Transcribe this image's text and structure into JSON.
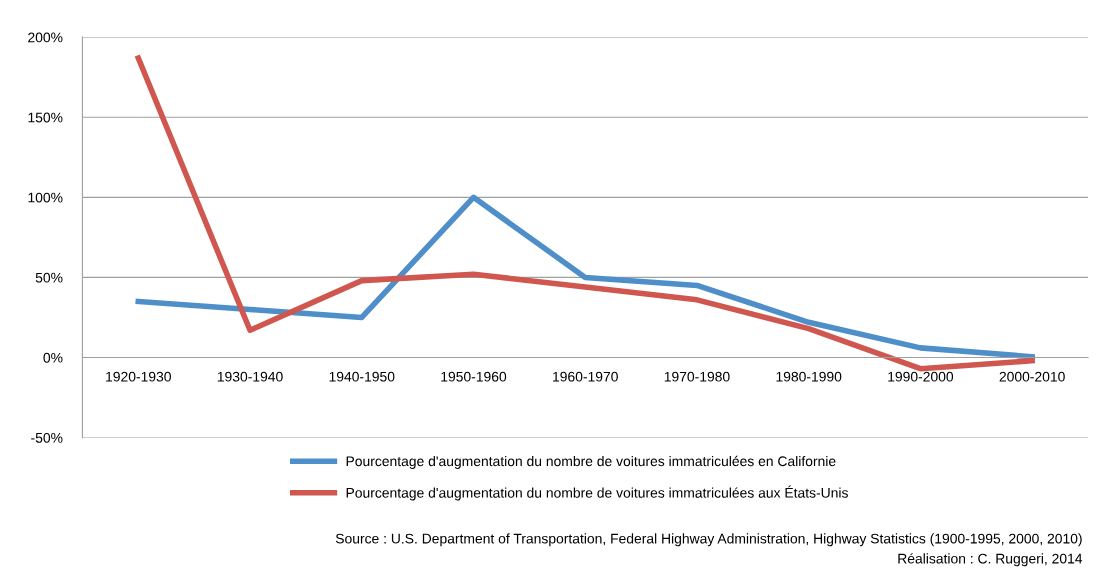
{
  "chart_data": {
    "type": "line",
    "categories": [
      "1920-1930",
      "1930-1940",
      "1940-1950",
      "1950-1960",
      "1960-1970",
      "1970-1980",
      "1980-1990",
      "1990-2000",
      "2000-2010"
    ],
    "series": [
      {
        "name": "Pourcentage d'augmentation du nombre de voitures immatriculées en Californie",
        "color": "#4f8fc9",
        "values": [
          35,
          30,
          25,
          100,
          50,
          45,
          22,
          6,
          0.5
        ]
      },
      {
        "name": "Pourcentage d'augmentation du nombre de voitures immatriculées aux États-Unis",
        "color": "#d0574f",
        "values": [
          187,
          17,
          48,
          52,
          44,
          36,
          18,
          -7,
          -2
        ]
      }
    ],
    "ylim": [
      -50,
      200
    ],
    "yticks": [
      {
        "value": -50,
        "label": "-50%"
      },
      {
        "value": 0,
        "label": "0%"
      },
      {
        "value": 50,
        "label": "50%"
      },
      {
        "value": 100,
        "label": "100%"
      },
      {
        "value": 150,
        "label": "150%"
      },
      {
        "value": 200,
        "label": "200%"
      }
    ],
    "grid": "y",
    "legend": "bottom",
    "marker": "none",
    "line_style": "solid",
    "annotations": [
      "Source : U.S. Department of Transportation, Federal Highway Administration, Highway Statistics (1900-1995, 2000, 2010)",
      "Réalisation : C. Ruggeri, 2014"
    ]
  }
}
